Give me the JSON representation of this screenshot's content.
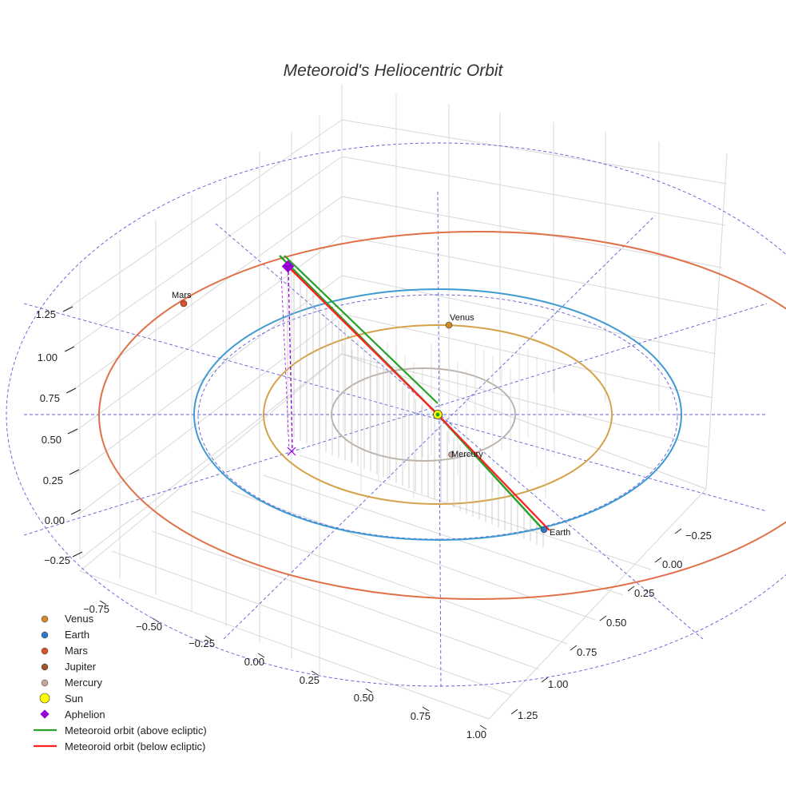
{
  "chart_data": {
    "type": "3d-orbit",
    "title": "Meteoroid's Heliocentric Orbit",
    "axes": {
      "x": {
        "ticks": [
          "−0.75",
          "−0.50",
          "−0.25",
          "0.00",
          "0.25",
          "0.50",
          "0.75",
          "1.00"
        ]
      },
      "y": {
        "ticks": [
          "−0.25",
          "0.00",
          "0.25",
          "0.50",
          "0.75",
          "1.00",
          "1.25"
        ]
      },
      "z": {
        "ticks": [
          "−0.25",
          "0.00",
          "0.25",
          "0.50",
          "0.75",
          "1.00",
          "1.25"
        ]
      }
    },
    "planets": [
      {
        "name": "Mercury",
        "orbit_radius_au": 0.39,
        "color": "#bdb3ab"
      },
      {
        "name": "Venus",
        "orbit_radius_au": 0.72,
        "color": "#d6a24a"
      },
      {
        "name": "Earth",
        "orbit_radius_au": 1.0,
        "color": "#3f9ad1"
      },
      {
        "name": "Mars",
        "orbit_radius_au": 1.52,
        "color": "#e07048"
      }
    ],
    "point_labels": [
      "Mars",
      "Venus",
      "Mercury",
      "Earth"
    ],
    "legend": {
      "position": "bottom-left",
      "entries": [
        {
          "label": "Venus",
          "marker": "circle",
          "color": "#d08a2a"
        },
        {
          "label": "Earth",
          "marker": "circle",
          "color": "#2f78c4"
        },
        {
          "label": "Mars",
          "marker": "circle",
          "color": "#d9532c"
        },
        {
          "label": "Jupiter",
          "marker": "circle",
          "color": "#a0522d"
        },
        {
          "label": "Mercury",
          "marker": "circle",
          "color": "#c7a79c"
        },
        {
          "label": "Sun",
          "marker": "circle",
          "color": "#ffff00"
        },
        {
          "label": "Aphelion",
          "marker": "diamond",
          "color": "#9400d3"
        },
        {
          "label": "Meteoroid orbit (above ecliptic)",
          "marker": "line",
          "color": "#2ca02c"
        },
        {
          "label": "Meteoroid orbit (below ecliptic)",
          "marker": "line",
          "color": "#ff2020"
        }
      ]
    },
    "colors": {
      "sun": "#ffff00",
      "aphelion": "#9400d3",
      "orbit_above": "#2ca02c",
      "orbit_below": "#ff2020",
      "guide": "#5b5bd6",
      "grid": "#d8d8d8"
    }
  }
}
